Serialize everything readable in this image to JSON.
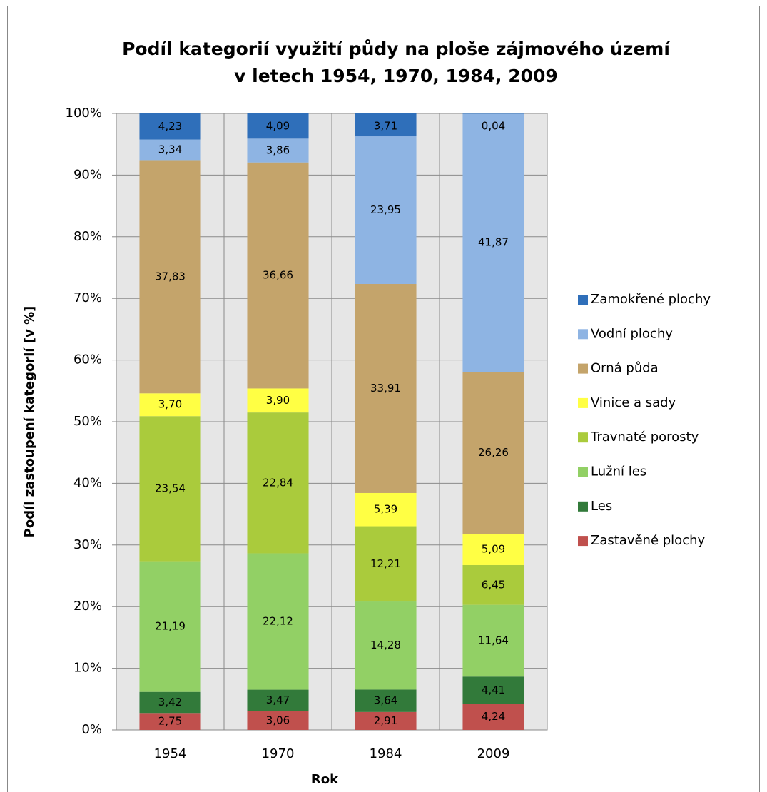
{
  "chart_data": {
    "type": "bar",
    "stacked": true,
    "title": [
      "Podíl kategorií využití půdy na ploše zájmového území",
      "v letech 1954, 1970, 1984, 2009"
    ],
    "xlabel": "Rok",
    "ylabel": "Podíl zastoupení kategorií [v %]",
    "categories": [
      "1954",
      "1970",
      "1984",
      "2009"
    ],
    "ylim": [
      0,
      100
    ],
    "yticks": [
      {
        "value": 0,
        "label": "0%"
      },
      {
        "value": 10,
        "label": "10%"
      },
      {
        "value": 20,
        "label": "20%"
      },
      {
        "value": 30,
        "label": "30%"
      },
      {
        "value": 40,
        "label": "40%"
      },
      {
        "value": 50,
        "label": "50%"
      },
      {
        "value": 60,
        "label": "60%"
      },
      {
        "value": 70,
        "label": "70%"
      },
      {
        "value": 80,
        "label": "80%"
      },
      {
        "value": 90,
        "label": "90%"
      },
      {
        "value": 100,
        "label": "100%"
      }
    ],
    "grid": true,
    "legend": "right",
    "series": [
      {
        "name": "Zastavěné plochy",
        "color": "#c0504d",
        "values": [
          2.75,
          3.06,
          2.91,
          4.24
        ],
        "value_labels": [
          "2,75",
          "3,06",
          "2,91",
          "4,24"
        ]
      },
      {
        "name": "Les",
        "color": "#327a3a",
        "values": [
          3.42,
          3.47,
          3.64,
          4.41
        ],
        "value_labels": [
          "3,42",
          "3,47",
          "3,64",
          "4,41"
        ]
      },
      {
        "name": "Lužní les",
        "color": "#92d065",
        "values": [
          21.19,
          22.12,
          14.28,
          11.64
        ],
        "value_labels": [
          "21,19",
          "22,12",
          "14,28",
          "11,64"
        ]
      },
      {
        "name": "Travnaté porosty",
        "color": "#aacb3c",
        "values": [
          23.54,
          22.84,
          12.21,
          6.45
        ],
        "value_labels": [
          "23,54",
          "22,84",
          "12,21",
          "6,45"
        ]
      },
      {
        "name": "Vinice a sady",
        "color": "#ffff44",
        "values": [
          3.7,
          3.9,
          5.39,
          5.09
        ],
        "value_labels": [
          "3,70",
          "3,90",
          "5,39",
          "5,09"
        ]
      },
      {
        "name": "Orná půda",
        "color": "#c4a46b",
        "values": [
          37.83,
          36.66,
          33.91,
          26.26
        ],
        "value_labels": [
          "37,83",
          "36,66",
          "33,91",
          "26,26"
        ]
      },
      {
        "name": "Vodní plochy",
        "color": "#8eb4e3",
        "values": [
          3.34,
          3.86,
          23.95,
          41.87
        ],
        "value_labels": [
          "3,34",
          "3,86",
          "23,95",
          "41,87"
        ]
      },
      {
        "name": "Zamokřené plochy",
        "color": "#2f6fba",
        "values": [
          4.23,
          4.09,
          3.71,
          0.04
        ],
        "value_labels": [
          "4,23",
          "4,09",
          "3,71",
          "0,04"
        ]
      }
    ]
  }
}
